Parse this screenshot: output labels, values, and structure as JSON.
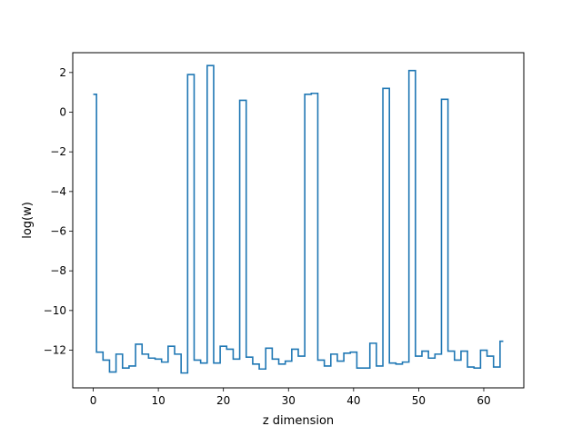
{
  "chart_data": {
    "type": "line",
    "style": "step-mid",
    "title": "",
    "xlabel": "z dimension",
    "ylabel": "log(w)",
    "xlim": [
      -3.15,
      66.15
    ],
    "ylim": [
      -13.9,
      3.0
    ],
    "xticks": [
      0,
      10,
      20,
      30,
      40,
      50,
      60
    ],
    "xtick_labels": [
      "0",
      "10",
      "20",
      "30",
      "40",
      "50",
      "60"
    ],
    "yticks": [
      2,
      0,
      -2,
      -4,
      -6,
      -8,
      -10,
      -12
    ],
    "ytick_labels": [
      "2",
      "0",
      "−2",
      "−4",
      "−6",
      "−8",
      "−10",
      "−12"
    ],
    "grid": false,
    "series": [
      {
        "color": "#1f77b4",
        "x": [
          0,
          1,
          2,
          3,
          4,
          5,
          6,
          7,
          8,
          9,
          10,
          11,
          12,
          13,
          14,
          15,
          16,
          17,
          18,
          19,
          20,
          21,
          22,
          23,
          24,
          25,
          26,
          27,
          28,
          29,
          30,
          31,
          32,
          33,
          34,
          35,
          36,
          37,
          38,
          39,
          40,
          41,
          42,
          43,
          44,
          45,
          46,
          47,
          48,
          49,
          50,
          51,
          52,
          53,
          54,
          55,
          56,
          57,
          58,
          59,
          60,
          61,
          62,
          63
        ],
        "values": [
          0.9,
          -12.1,
          -12.5,
          -13.1,
          -12.2,
          -12.9,
          -12.8,
          -11.7,
          -12.2,
          -12.4,
          -12.45,
          -12.6,
          -11.8,
          -12.2,
          -13.15,
          1.9,
          -12.5,
          -12.65,
          2.35,
          -12.65,
          -11.8,
          -11.95,
          -12.45,
          0.6,
          -12.35,
          -12.7,
          -12.95,
          -11.9,
          -12.45,
          -12.7,
          -12.55,
          -11.95,
          -12.3,
          0.9,
          0.95,
          -12.5,
          -12.8,
          -12.2,
          -12.55,
          -12.15,
          -12.1,
          -12.9,
          -12.9,
          -11.65,
          -12.8,
          1.2,
          -12.65,
          -12.7,
          -12.6,
          2.1,
          -12.3,
          -12.05,
          -12.4,
          -12.2,
          0.65,
          -12.05,
          -12.5,
          -12.05,
          -12.85,
          -12.9,
          -12.0,
          -12.3,
          -12.85,
          -11.55
        ]
      }
    ]
  }
}
